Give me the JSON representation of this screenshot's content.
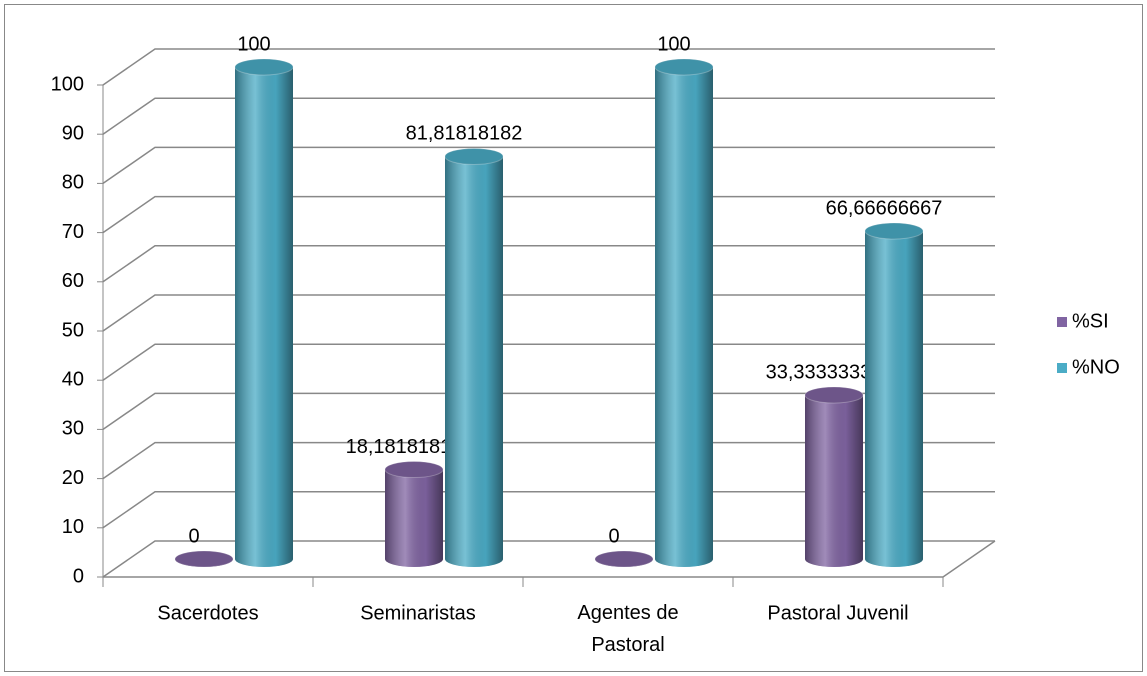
{
  "chart_data": {
    "type": "bar3d_cylinder",
    "categories": [
      "Sacerdotes",
      "Seminaristas",
      "Agentes de Pastoral",
      "Pastoral Juvenil"
    ],
    "series": [
      {
        "name": "%SI",
        "color": "#8064a2",
        "values": [
          0,
          18.18181818,
          0,
          33.33333333
        ],
        "value_labels": [
          "0",
          "18,18181818",
          "0",
          "33,33333333"
        ]
      },
      {
        "name": "%NO",
        "color": "#4bacc6",
        "values": [
          100,
          81.81818182,
          100,
          66.66666667
        ],
        "value_labels": [
          "100",
          "81,81818182",
          "100",
          "66,66666667"
        ]
      }
    ],
    "ylim": [
      0,
      100
    ],
    "yticks": [
      0,
      10,
      20,
      30,
      40,
      50,
      60,
      70,
      80,
      90,
      100
    ],
    "grid": true,
    "legend": "right"
  }
}
